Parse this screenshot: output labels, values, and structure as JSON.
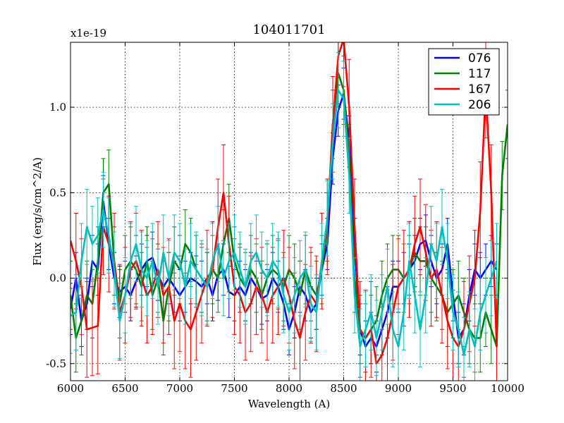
{
  "chart_data": {
    "type": "line",
    "title": "104011701",
    "xlabel": "Wavelength (A)",
    "ylabel": "Flux (erg/s/cm^2/A)",
    "y_multiplier": "x1e-19",
    "xlim": [
      6000,
      10000
    ],
    "ylim": [
      -0.6,
      1.38
    ],
    "xticks": [
      6000,
      6500,
      7000,
      7500,
      8000,
      8500,
      9000,
      9500,
      10000
    ],
    "xtick_labels": [
      "6000",
      "6500",
      "7000",
      "7500",
      "8000",
      "8500",
      "9000",
      "9500",
      "10000"
    ],
    "yticks": [
      -0.5,
      0.0,
      0.5,
      1.0
    ],
    "ytick_labels": [
      "-0.5",
      "0.0",
      "0.5",
      "1.0"
    ],
    "grid": true,
    "legend_position": "top-right",
    "series": [
      {
        "name": "076",
        "color": "#0000ff",
        "x": [
          6000,
          6050,
          6100,
          6150,
          6200,
          6250,
          6300,
          6350,
          6400,
          6450,
          6500,
          6550,
          6600,
          6650,
          6700,
          6750,
          6800,
          6850,
          6900,
          6950,
          7000,
          7050,
          7100,
          7150,
          7200,
          7250,
          7300,
          7350,
          7400,
          7450,
          7500,
          7550,
          7600,
          7650,
          7700,
          7750,
          7800,
          7850,
          7900,
          7950,
          8000,
          8050,
          8100,
          8150,
          8200,
          8250,
          8300,
          8350,
          8400,
          8450,
          8500,
          8550,
          8600,
          8650,
          8700,
          8750,
          8800,
          8850,
          8900,
          8950,
          9000,
          9050,
          9100,
          9150,
          9200,
          9250,
          9300,
          9350,
          9400,
          9450,
          9500,
          9550,
          9600,
          9650,
          9700,
          9750,
          9800,
          9850,
          9900
        ],
        "y": [
          -0.18,
          0.0,
          -0.25,
          -0.15,
          0.1,
          0.05,
          0.45,
          0.2,
          0.0,
          -0.08,
          -0.05,
          -0.1,
          -0.02,
          0.05,
          0.1,
          0.12,
          0.02,
          -0.05,
          0.0,
          -0.05,
          -0.1,
          -0.05,
          0.0,
          -0.02,
          -0.05,
          0.0,
          -0.1,
          0.02,
          0.05,
          -0.08,
          -0.1,
          -0.05,
          -0.1,
          0.0,
          -0.05,
          -0.12,
          -0.1,
          0.0,
          -0.05,
          -0.15,
          -0.3,
          -0.2,
          -0.05,
          -0.1,
          -0.2,
          -0.15,
          0.05,
          0.2,
          0.7,
          0.98,
          1.08,
          0.8,
          0.2,
          -0.3,
          -0.4,
          -0.35,
          -0.4,
          -0.3,
          -0.2,
          -0.05,
          -0.05,
          0.0,
          0.05,
          0.1,
          0.2,
          0.22,
          0.1,
          0.0,
          0.05,
          0.2,
          -0.1,
          -0.35,
          -0.3,
          -0.1,
          0.05,
          0.0,
          0.05,
          0.1,
          0.05
        ],
        "err": 0.15
      },
      {
        "name": "117",
        "color": "#008000",
        "x": [
          6000,
          6050,
          6100,
          6150,
          6200,
          6250,
          6300,
          6350,
          6400,
          6450,
          6500,
          6550,
          6600,
          6650,
          6700,
          6750,
          6800,
          6850,
          6900,
          6950,
          7000,
          7050,
          7100,
          7150,
          7200,
          7250,
          7300,
          7350,
          7400,
          7450,
          7500,
          7550,
          7600,
          7650,
          7700,
          7750,
          7800,
          7850,
          7900,
          7950,
          8000,
          8050,
          8100,
          8150,
          8200,
          8250,
          8300,
          8350,
          8400,
          8450,
          8500,
          8550,
          8600,
          8650,
          8700,
          8750,
          8800,
          8850,
          8900,
          8950,
          9000,
          9050,
          9100,
          9150,
          9200,
          9250,
          9300,
          9350,
          9400,
          9450,
          9500,
          9550,
          9600,
          9650,
          9700,
          9750,
          9800,
          9850,
          9900,
          9950,
          10000
        ],
        "y": [
          -0.1,
          -0.35,
          -0.25,
          -0.1,
          -0.15,
          0.1,
          0.5,
          0.55,
          0.1,
          -0.15,
          0.05,
          0.1,
          0.05,
          -0.05,
          0.1,
          -0.1,
          0.0,
          -0.25,
          -0.05,
          0.1,
          0.05,
          0.2,
          0.15,
          0.05,
          0.0,
          -0.05,
          0.05,
          0.0,
          0.2,
          0.35,
          0.1,
          0.0,
          -0.05,
          0.05,
          0.0,
          -0.1,
          0.0,
          0.05,
          0.02,
          -0.05,
          0.05,
          0.0,
          -0.1,
          0.05,
          -0.05,
          -0.1,
          0.05,
          0.3,
          0.9,
          1.2,
          1.1,
          0.7,
          0.0,
          -0.3,
          -0.35,
          -0.3,
          -0.25,
          -0.1,
          0.0,
          0.05,
          0.05,
          0.0,
          0.05,
          0.15,
          0.1,
          0.1,
          0.0,
          -0.05,
          -0.1,
          -0.2,
          -0.15,
          -0.1,
          -0.2,
          -0.3,
          -0.35,
          -0.35,
          -0.2,
          -0.3,
          -0.4,
          0.6,
          0.9
        ],
        "err": 0.2
      },
      {
        "name": "167",
        "color": "#ff0000",
        "x": [
          6000,
          6050,
          6100,
          6150,
          6200,
          6250,
          6300,
          6350,
          6400,
          6450,
          6500,
          6550,
          6600,
          6650,
          6700,
          6750,
          6800,
          6850,
          6900,
          6950,
          7000,
          7050,
          7100,
          7150,
          7200,
          7250,
          7300,
          7350,
          7400,
          7450,
          7500,
          7550,
          7600,
          7650,
          7700,
          7750,
          7800,
          7850,
          7900,
          7950,
          8000,
          8050,
          8100,
          8150,
          8200,
          8250,
          8300,
          8350,
          8400,
          8450,
          8500,
          8550,
          8600,
          8650,
          8700,
          8750,
          8800,
          8850,
          8900,
          8950,
          9000,
          9050,
          9100,
          9150,
          9200,
          9250,
          9300,
          9350,
          9400,
          9450,
          9500,
          9550,
          9600,
          9650,
          9700,
          9750,
          9800,
          9850,
          9900
        ],
        "y": [
          0.22,
          0.1,
          -0.05,
          -0.3,
          -0.29,
          -0.28,
          0.3,
          0.2,
          0.1,
          -0.2,
          -0.1,
          0.05,
          0.1,
          0.0,
          -0.1,
          -0.05,
          0.05,
          -0.1,
          -0.05,
          -0.25,
          -0.15,
          -0.25,
          -0.3,
          -0.2,
          -0.1,
          0.0,
          0.05,
          0.3,
          0.5,
          0.2,
          -0.05,
          -0.1,
          -0.2,
          -0.15,
          -0.05,
          -0.1,
          -0.2,
          -0.1,
          -0.05,
          0.0,
          -0.1,
          -0.25,
          -0.35,
          -0.2,
          -0.1,
          -0.15,
          0.1,
          0.3,
          0.9,
          1.3,
          1.4,
          1.0,
          0.3,
          -0.3,
          -0.35,
          -0.3,
          -0.5,
          -0.45,
          -0.35,
          -0.2,
          -0.05,
          0.0,
          0.05,
          0.2,
          0.3,
          0.15,
          0.0,
          0.05,
          -0.1,
          -0.25,
          -0.35,
          -0.4,
          -0.3,
          -0.15,
          0.0,
          0.4,
          1.1,
          0.5,
          -0.4
        ],
        "err": 0.28
      },
      {
        "name": "206",
        "color": "#00bfbf",
        "x": [
          6000,
          6050,
          6100,
          6150,
          6200,
          6250,
          6300,
          6350,
          6400,
          6450,
          6500,
          6550,
          6600,
          6650,
          6700,
          6750,
          6800,
          6850,
          6900,
          6950,
          7000,
          7050,
          7100,
          7150,
          7200,
          7250,
          7300,
          7350,
          7400,
          7450,
          7500,
          7550,
          7600,
          7650,
          7700,
          7750,
          7800,
          7850,
          7900,
          7950,
          8000,
          8050,
          8100,
          8150,
          8200,
          8250,
          8300,
          8350,
          8400,
          8450,
          8500,
          8550,
          8600,
          8650,
          8700,
          8750,
          8800,
          8850,
          8900,
          8950,
          9000,
          9050,
          9100,
          9150,
          9200,
          9250,
          9300,
          9350,
          9400,
          9450,
          9500,
          9550,
          9600,
          9650,
          9700,
          9750,
          9800,
          9850,
          9900
        ],
        "y": [
          -0.22,
          -0.2,
          0.1,
          0.3,
          0.2,
          0.25,
          0.4,
          0.25,
          0.05,
          -0.25,
          -0.1,
          0.1,
          0.2,
          0.05,
          0.0,
          0.1,
          -0.05,
          0.15,
          0.0,
          0.15,
          0.1,
          -0.05,
          0.1,
          0.05,
          0.0,
          -0.05,
          0.1,
          0.2,
          0.0,
          0.1,
          0.15,
          0.05,
          -0.05,
          0.1,
          0.15,
          0.05,
          0.0,
          0.1,
          0.05,
          -0.1,
          -0.2,
          -0.1,
          0.0,
          0.05,
          -0.15,
          -0.2,
          0.1,
          0.35,
          0.8,
          1.1,
          1.05,
          0.6,
          -0.1,
          -0.4,
          -0.3,
          -0.2,
          -0.35,
          -0.2,
          -0.05,
          -0.3,
          -0.4,
          -0.2,
          0.1,
          -0.1,
          -0.3,
          -0.1,
          0.2,
          0.1,
          0.3,
          0.1,
          -0.2,
          -0.3,
          -0.45,
          -0.3,
          -0.4,
          -0.2,
          -0.1,
          0.0,
          0.1
        ],
        "err": 0.22
      }
    ]
  }
}
